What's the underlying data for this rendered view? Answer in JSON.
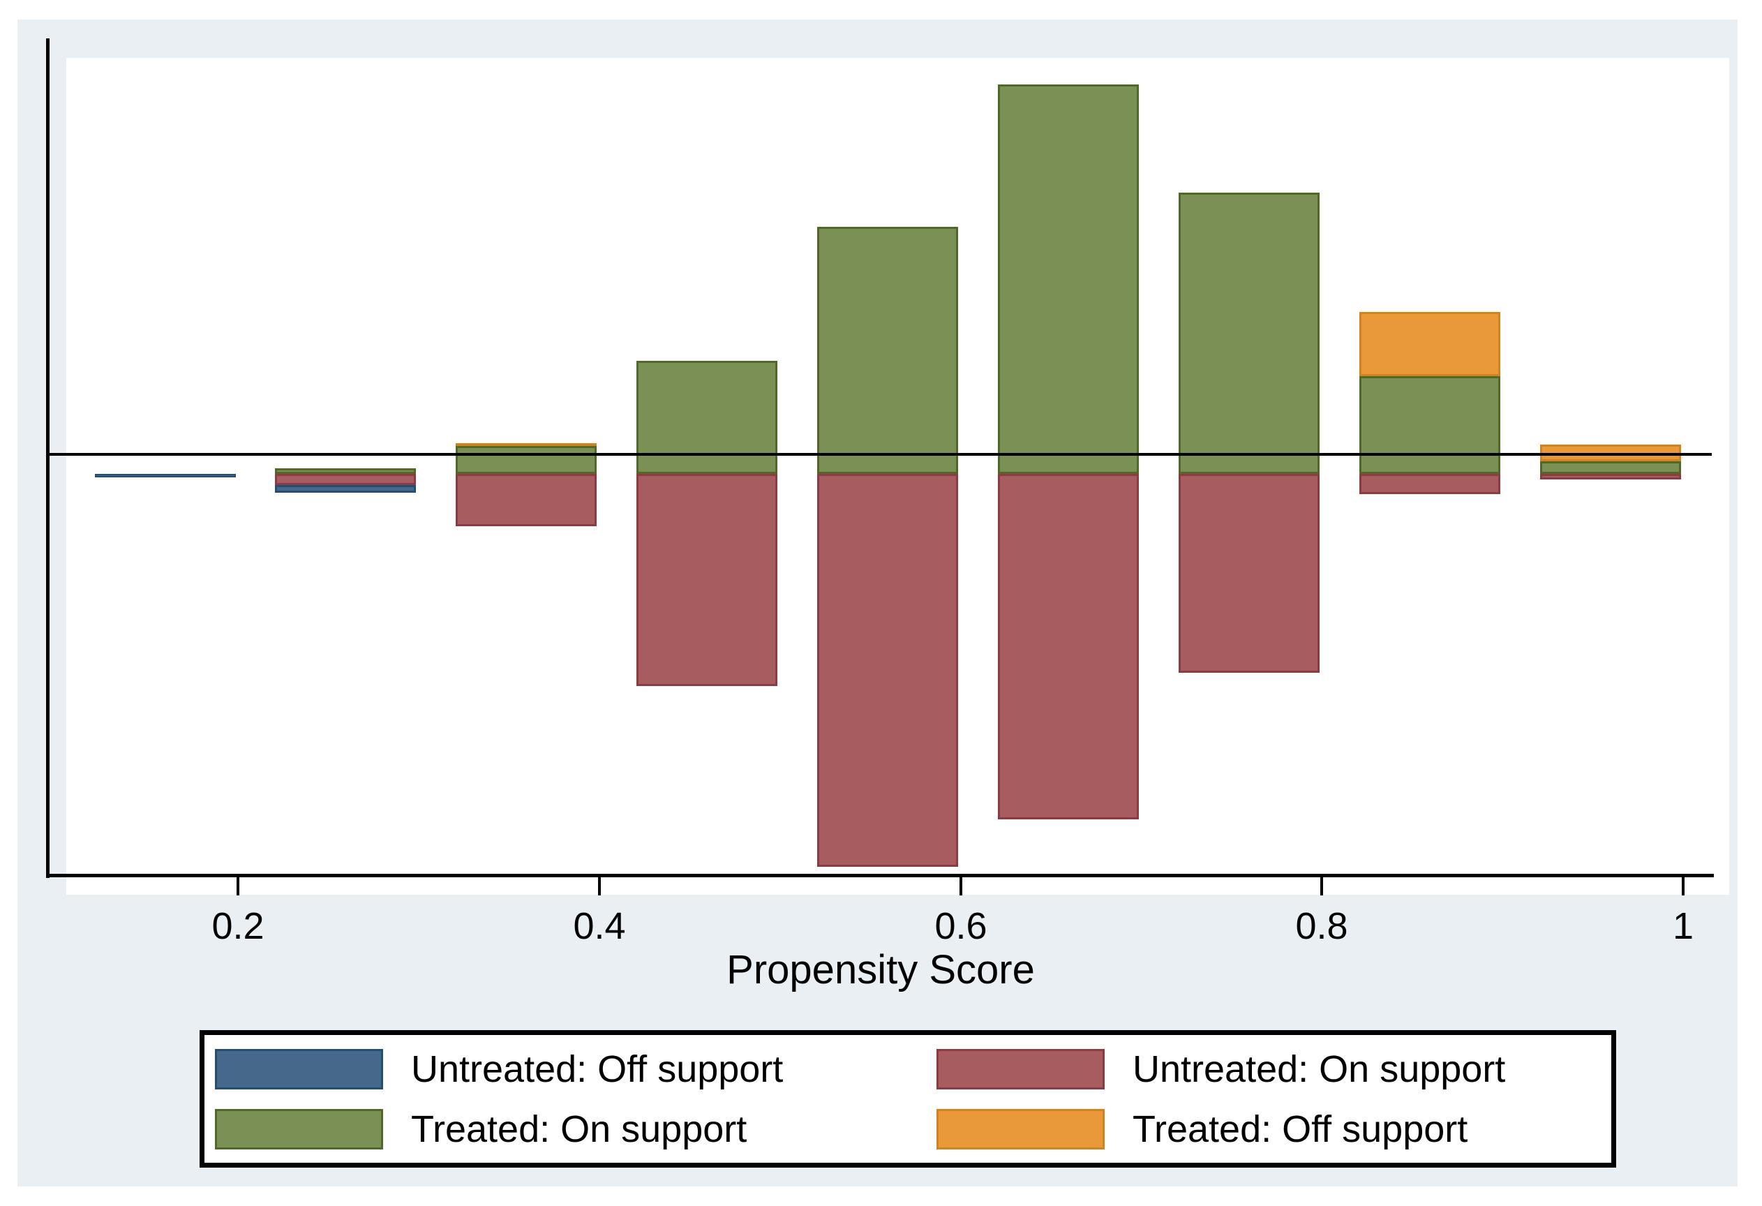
{
  "chart_data": {
    "type": "bar",
    "variant": "diverging-histogram (Stata psgraph): treated plotted above the axis, untreated below",
    "title": "",
    "xlabel": "Propensity Score",
    "ylabel": "",
    "x_ticks": [
      0.2,
      0.4,
      0.6,
      0.8,
      1
    ],
    "x_tick_labels": [
      "0.2",
      "0.4",
      "0.6",
      "0.8",
      "1"
    ],
    "xlim": [
      0.1,
      1.0
    ],
    "bin_centers": [
      0.15,
      0.25,
      0.35,
      0.45,
      0.55,
      0.65,
      0.75,
      0.85,
      0.95
    ],
    "bin_width": 0.1,
    "grid": false,
    "legend_position": "bottom",
    "y_units": "relative frequency (fraction of axis half-height, unlabeled axis)",
    "series": [
      {
        "name": "Untreated: Off support",
        "direction": "down",
        "stack_on": "Untreated: On support",
        "color": "#46688a",
        "border_color": "#234d71",
        "values": [
          0.008,
          0.018,
          0,
          0,
          0,
          0,
          0,
          0,
          0
        ]
      },
      {
        "name": "Untreated: On support",
        "direction": "down",
        "stack_on": null,
        "color": "#a75c60",
        "border_color": "#8e3a42",
        "values": [
          0,
          0.027,
          0.125,
          0.507,
          0.938,
          0.825,
          0.475,
          0.048,
          0.013
        ]
      },
      {
        "name": "Treated: On support",
        "direction": "up",
        "stack_on": null,
        "color": "#7a9055",
        "border_color": "#506828",
        "values": [
          0,
          0.013,
          0.067,
          0.27,
          0.59,
          0.93,
          0.672,
          0.233,
          0.03
        ]
      },
      {
        "name": "Treated: Off support",
        "direction": "up",
        "stack_on": "Treated: On support",
        "color": "#e99939",
        "border_color": "#d4821c",
        "values": [
          0,
          0,
          0.007,
          0,
          0,
          0,
          0,
          0.153,
          0.04
        ]
      }
    ]
  },
  "legend": {
    "items": [
      {
        "label": "Untreated: Off support",
        "color": "#46688a",
        "border_color": "#234d71"
      },
      {
        "label": "Untreated: On support",
        "color": "#a75c60",
        "border_color": "#8e3a42"
      },
      {
        "label": "Treated: On support",
        "color": "#7a9055",
        "border_color": "#506828"
      },
      {
        "label": "Treated: Off support",
        "color": "#e99939",
        "border_color": "#d4821c"
      }
    ]
  },
  "colors": {
    "canvas_background": "#e9eff2",
    "plot_background": "#ffffff",
    "axis": "#000000"
  }
}
